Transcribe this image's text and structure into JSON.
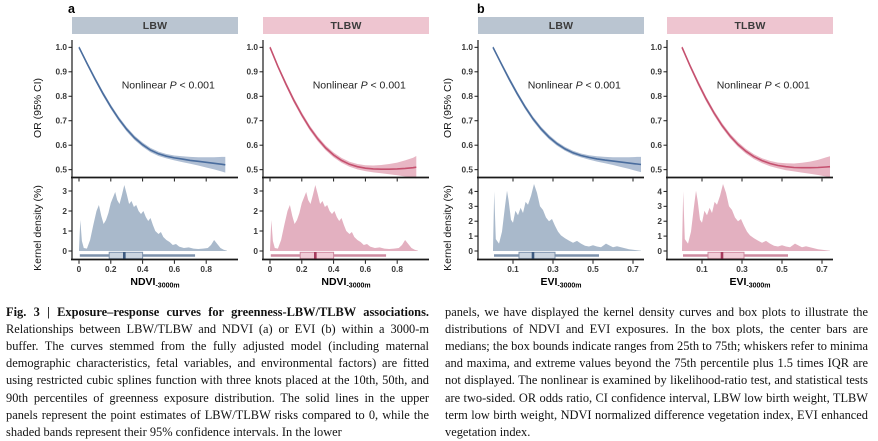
{
  "figure": {
    "panel_letters": {
      "a": "a",
      "b": "b"
    }
  },
  "chart_data": {
    "type": "line",
    "title": "Exposure-response curves for greenness-LBW/TLBW associations",
    "or_axis_label": "OR (95% CI)",
    "density_axis_label": "Kernel density (%)",
    "annotation": {
      "pre": "Nonlinear ",
      "p": "P",
      "post": " < 0.001"
    },
    "palettes": {
      "blue": {
        "line": "#4a6d9e",
        "band": "#a7b8cf",
        "density": "#a9b9cb",
        "box_fill": "#ccd5e0",
        "box_edge": "#7e93ad",
        "median": "#3d5a80",
        "whisker": "#7e93ad",
        "header": "#bac5d1"
      },
      "pink": {
        "line": "#c5516f",
        "band": "#e5aebe",
        "density": "#e3b0c0",
        "box_fill": "#f1ccd7",
        "box_edge": "#cf8ba1",
        "median": "#a63b5d",
        "whisker": "#cf8ba1",
        "header": "#eec5d0"
      }
    },
    "exposures": {
      "NDVI": {
        "xlabel": "NDVI",
        "xlabel_subscript": "-3000m",
        "x_ticks": [
          0,
          0.2,
          0.4,
          0.6,
          0.8
        ],
        "x_plot_range": [
          -0.044,
          1.0
        ],
        "density_ticks": [
          0,
          1,
          2,
          3
        ],
        "density_max": 3.5,
        "boxplot": {
          "min": 0.005,
          "q1": 0.19,
          "median": 0.285,
          "q3": 0.4,
          "max": 0.73
        },
        "density": [
          [
            0,
            0.05
          ],
          [
            0.008,
            1.55
          ],
          [
            0.018,
            0.5
          ],
          [
            0.03,
            0.15
          ],
          [
            0.05,
            0.12
          ],
          [
            0.07,
            0.55
          ],
          [
            0.09,
            1.3
          ],
          [
            0.11,
            2.0
          ],
          [
            0.125,
            2.3
          ],
          [
            0.14,
            1.75
          ],
          [
            0.155,
            1.35
          ],
          [
            0.17,
            1.55
          ],
          [
            0.185,
            1.9
          ],
          [
            0.2,
            2.4
          ],
          [
            0.215,
            2.7
          ],
          [
            0.228,
            2.95
          ],
          [
            0.24,
            2.55
          ],
          [
            0.255,
            2.35
          ],
          [
            0.27,
            2.8
          ],
          [
            0.285,
            3.3
          ],
          [
            0.3,
            2.85
          ],
          [
            0.315,
            2.35
          ],
          [
            0.33,
            2.5
          ],
          [
            0.345,
            2.2
          ],
          [
            0.36,
            2.3
          ],
          [
            0.375,
            2.0
          ],
          [
            0.39,
            1.85
          ],
          [
            0.405,
            2.0
          ],
          [
            0.42,
            1.7
          ],
          [
            0.435,
            1.5
          ],
          [
            0.45,
            1.65
          ],
          [
            0.465,
            1.3
          ],
          [
            0.48,
            1.0
          ],
          [
            0.5,
            0.85
          ],
          [
            0.515,
            0.95
          ],
          [
            0.53,
            0.7
          ],
          [
            0.55,
            0.55
          ],
          [
            0.57,
            0.45
          ],
          [
            0.59,
            0.3
          ],
          [
            0.61,
            0.35
          ],
          [
            0.63,
            0.22
          ],
          [
            0.66,
            0.15
          ],
          [
            0.69,
            0.18
          ],
          [
            0.72,
            0.12
          ],
          [
            0.75,
            0.1
          ],
          [
            0.78,
            0.12
          ],
          [
            0.81,
            0.15
          ],
          [
            0.83,
            0.3
          ],
          [
            0.85,
            0.55
          ],
          [
            0.87,
            0.35
          ],
          [
            0.89,
            0.15
          ],
          [
            0.91,
            0.06
          ],
          [
            0.93,
            0.02
          ]
        ]
      },
      "EVI": {
        "xlabel": "EVI",
        "xlabel_subscript": "-3000m",
        "x_ticks": [
          0.1,
          0.3,
          0.5,
          0.7
        ],
        "x_plot_range": [
          -0.075,
          0.755
        ],
        "density_ticks": [
          0,
          1,
          2,
          3,
          4
        ],
        "density_max": 4.7,
        "boxplot": {
          "min": 0.005,
          "q1": 0.13,
          "median": 0.2,
          "q3": 0.31,
          "max": 0.53
        },
        "density": [
          [
            0,
            0.1
          ],
          [
            0.006,
            4.0
          ],
          [
            0.014,
            0.8
          ],
          [
            0.03,
            0.5
          ],
          [
            0.045,
            1.3
          ],
          [
            0.06,
            3.0
          ],
          [
            0.07,
            4.05
          ],
          [
            0.078,
            3.4
          ],
          [
            0.09,
            2.1
          ],
          [
            0.1,
            1.9
          ],
          [
            0.112,
            2.7
          ],
          [
            0.125,
            2.4
          ],
          [
            0.138,
            2.9
          ],
          [
            0.15,
            2.55
          ],
          [
            0.163,
            3.3
          ],
          [
            0.175,
            3.1
          ],
          [
            0.19,
            3.7
          ],
          [
            0.205,
            4.5
          ],
          [
            0.22,
            3.9
          ],
          [
            0.235,
            3.0
          ],
          [
            0.25,
            2.75
          ],
          [
            0.265,
            2.25
          ],
          [
            0.28,
            2.0
          ],
          [
            0.295,
            2.15
          ],
          [
            0.31,
            1.7
          ],
          [
            0.325,
            1.3
          ],
          [
            0.34,
            1.05
          ],
          [
            0.36,
            0.85
          ],
          [
            0.38,
            0.7
          ],
          [
            0.4,
            0.55
          ],
          [
            0.42,
            0.68
          ],
          [
            0.44,
            0.5
          ],
          [
            0.46,
            0.35
          ],
          [
            0.48,
            0.3
          ],
          [
            0.5,
            0.38
          ],
          [
            0.52,
            0.3
          ],
          [
            0.54,
            0.25
          ],
          [
            0.565,
            0.5
          ],
          [
            0.585,
            0.35
          ],
          [
            0.6,
            0.25
          ],
          [
            0.62,
            0.32
          ],
          [
            0.64,
            0.25
          ],
          [
            0.66,
            0.18
          ],
          [
            0.68,
            0.12
          ],
          [
            0.7,
            0.08
          ],
          [
            0.72,
            0.05
          ],
          [
            0.74,
            0.02
          ]
        ]
      }
    },
    "panels": [
      {
        "group": "a",
        "outcome": "LBW",
        "exposure": "NDVI",
        "palette": "blue",
        "annotation_text": "Nonlinear P < 0.001",
        "or_ticks": [
          1.0,
          0.9,
          0.8,
          0.7,
          0.6,
          0.5
        ],
        "or_range": [
          0.47,
          1.03
        ],
        "curve": {
          "x": [
            0,
            0.05,
            0.1,
            0.15,
            0.2,
            0.25,
            0.3,
            0.35,
            0.4,
            0.45,
            0.5,
            0.55,
            0.6,
            0.65,
            0.7,
            0.75,
            0.8,
            0.85,
            0.9,
            0.92
          ],
          "or": [
            1.0,
            0.935,
            0.872,
            0.812,
            0.757,
            0.708,
            0.665,
            0.63,
            0.602,
            0.58,
            0.565,
            0.555,
            0.548,
            0.543,
            0.538,
            0.534,
            0.53,
            0.526,
            0.522,
            0.52
          ],
          "ci_low": [
            0.994,
            0.928,
            0.864,
            0.803,
            0.748,
            0.699,
            0.656,
            0.621,
            0.593,
            0.571,
            0.556,
            0.546,
            0.538,
            0.531,
            0.524,
            0.517,
            0.509,
            0.501,
            0.492,
            0.488
          ],
          "ci_high": [
            1.006,
            0.942,
            0.88,
            0.821,
            0.766,
            0.717,
            0.674,
            0.639,
            0.611,
            0.589,
            0.574,
            0.564,
            0.558,
            0.555,
            0.552,
            0.551,
            0.551,
            0.551,
            0.552,
            0.552
          ]
        }
      },
      {
        "group": "a",
        "outcome": "TLBW",
        "exposure": "NDVI",
        "palette": "pink",
        "annotation_text": "Nonlinear P < 0.001",
        "or_ticks": [
          1.0,
          0.9,
          0.8,
          0.7,
          0.6,
          0.5
        ],
        "or_range": [
          0.47,
          1.03
        ],
        "curve": {
          "x": [
            0,
            0.05,
            0.1,
            0.15,
            0.2,
            0.25,
            0.3,
            0.35,
            0.4,
            0.45,
            0.5,
            0.55,
            0.6,
            0.65,
            0.7,
            0.75,
            0.8,
            0.85,
            0.9,
            0.92
          ],
          "or": [
            1.0,
            0.922,
            0.85,
            0.784,
            0.724,
            0.671,
            0.626,
            0.589,
            0.56,
            0.538,
            0.522,
            0.512,
            0.506,
            0.503,
            0.502,
            0.502,
            0.503,
            0.505,
            0.508,
            0.51
          ],
          "ci_low": [
            0.994,
            0.915,
            0.841,
            0.774,
            0.714,
            0.661,
            0.616,
            0.579,
            0.55,
            0.528,
            0.512,
            0.501,
            0.494,
            0.489,
            0.485,
            0.481,
            0.477,
            0.472,
            0.467,
            0.464
          ],
          "ci_high": [
            1.006,
            0.929,
            0.859,
            0.794,
            0.734,
            0.681,
            0.636,
            0.599,
            0.57,
            0.548,
            0.532,
            0.523,
            0.518,
            0.517,
            0.519,
            0.523,
            0.529,
            0.538,
            0.549,
            0.556
          ]
        }
      },
      {
        "group": "b",
        "outcome": "LBW",
        "exposure": "EVI",
        "palette": "blue",
        "annotation_text": "Nonlinear P < 0.001",
        "or_ticks": [
          1.0,
          0.9,
          0.8,
          0.7,
          0.6,
          0.5
        ],
        "or_range": [
          0.47,
          1.03
        ],
        "curve": {
          "x": [
            0,
            0.04,
            0.08,
            0.12,
            0.16,
            0.2,
            0.24,
            0.28,
            0.32,
            0.36,
            0.4,
            0.44,
            0.48,
            0.52,
            0.56,
            0.6,
            0.64,
            0.68,
            0.72,
            0.74
          ],
          "or": [
            1.0,
            0.935,
            0.872,
            0.812,
            0.757,
            0.708,
            0.667,
            0.633,
            0.606,
            0.585,
            0.569,
            0.558,
            0.55,
            0.544,
            0.539,
            0.535,
            0.531,
            0.527,
            0.523,
            0.521
          ],
          "ci_low": [
            0.994,
            0.928,
            0.863,
            0.803,
            0.748,
            0.699,
            0.658,
            0.624,
            0.598,
            0.577,
            0.561,
            0.55,
            0.541,
            0.533,
            0.526,
            0.519,
            0.511,
            0.503,
            0.494,
            0.49
          ],
          "ci_high": [
            1.006,
            0.942,
            0.881,
            0.821,
            0.766,
            0.717,
            0.676,
            0.642,
            0.614,
            0.593,
            0.577,
            0.566,
            0.559,
            0.555,
            0.552,
            0.551,
            0.551,
            0.551,
            0.552,
            0.552
          ]
        }
      },
      {
        "group": "b",
        "outcome": "TLBW",
        "exposure": "EVI",
        "palette": "pink",
        "annotation_text": "Nonlinear P < 0.001",
        "or_ticks": [
          1.0,
          0.9,
          0.8,
          0.7,
          0.6,
          0.5
        ],
        "or_range": [
          0.47,
          1.03
        ],
        "curve": {
          "x": [
            0,
            0.04,
            0.08,
            0.12,
            0.16,
            0.2,
            0.24,
            0.28,
            0.32,
            0.36,
            0.4,
            0.44,
            0.48,
            0.52,
            0.56,
            0.6,
            0.64,
            0.68,
            0.72,
            0.74
          ],
          "or": [
            1.0,
            0.925,
            0.855,
            0.79,
            0.732,
            0.681,
            0.638,
            0.603,
            0.575,
            0.553,
            0.537,
            0.525,
            0.517,
            0.512,
            0.509,
            0.508,
            0.508,
            0.509,
            0.511,
            0.512
          ],
          "ci_low": [
            0.994,
            0.917,
            0.845,
            0.78,
            0.722,
            0.671,
            0.628,
            0.593,
            0.565,
            0.543,
            0.527,
            0.514,
            0.505,
            0.498,
            0.493,
            0.488,
            0.483,
            0.478,
            0.472,
            0.469
          ],
          "ci_high": [
            1.006,
            0.933,
            0.865,
            0.8,
            0.742,
            0.691,
            0.648,
            0.613,
            0.585,
            0.563,
            0.547,
            0.536,
            0.529,
            0.526,
            0.525,
            0.528,
            0.533,
            0.54,
            0.55,
            0.555
          ]
        }
      }
    ]
  },
  "caption": {
    "left_title": "Fig. 3 | Exposure–response curves for greenness-LBW/TLBW associations.",
    "left_body": " Relationships between LBW/TLBW and NDVI (a) or EVI (b) within a 3000-m buffer. The curves stemmed from the fully adjusted model (including maternal demographic characteristics, fetal variables, and environmental factors) are fitted using restricted cubic splines function with three knots placed at the 10th, 50th, and 90th percentiles of greenness exposure distribution. The solid lines in the upper panels represent the point estimates of LBW/TLBW risks compared to 0, while the shaded bands represent their 95% confidence intervals. In the lower",
    "right_body": "panels, we have displayed the kernel density curves and box plots to illustrate the distributions of NDVI and EVI exposures. In the box plots, the center bars are medians; the box bounds indicate ranges from 25th to 75th; whiskers refer to minima and maxima, and extreme values beyond the 75th percentile plus 1.5 times IQR are not displayed. The nonlinear is examined by likelihood-ratio test, and statistical tests are two-sided. OR odds ratio, CI confidence interval, LBW low birth weight, TLBW term low birth weight, NDVI normalized difference vegetation index, EVI enhanced vegetation index."
  }
}
